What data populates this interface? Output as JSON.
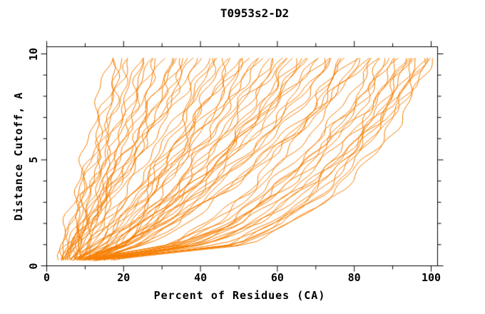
{
  "chart_data": {
    "type": "line",
    "title": "T0953s2-D2",
    "xlabel": "Percent of Residues (CA)",
    "ylabel": "Distance Cutoff, A",
    "xlim": [
      0,
      100
    ],
    "ylim": [
      0,
      10
    ],
    "grid": false,
    "legend": "none",
    "line_color": "#F67E00",
    "frame_color": "#000000",
    "x_ticks": {
      "major": [
        0,
        20,
        40,
        60,
        80,
        100
      ],
      "minor": [
        10,
        30,
        50,
        70,
        90
      ],
      "labels": [
        "0",
        "20",
        "40",
        "60",
        "80",
        "100"
      ]
    },
    "y_ticks": {
      "major": [
        0,
        5,
        10
      ],
      "minor": [
        1,
        2,
        3,
        4,
        6,
        7,
        8,
        9
      ],
      "labels": [
        "0",
        "5",
        "10"
      ]
    },
    "series_note": "Each series = one predicted model: percent of CA residues (x) under each distance cutoff in Angstroms (y). Values estimated from plot.",
    "cutoffs": [
      0.3,
      1.0,
      2.0,
      3.5,
      5.5,
      7.5,
      9.8
    ],
    "series": [
      [
        3,
        4,
        5,
        8,
        10,
        13,
        16
      ],
      [
        4,
        5,
        6,
        8,
        12,
        15,
        18
      ],
      [
        5,
        6,
        8,
        10,
        14,
        17,
        20
      ],
      [
        4,
        5,
        7,
        9,
        13,
        17,
        21
      ],
      [
        6,
        7,
        9,
        12,
        15,
        18,
        22
      ],
      [
        5,
        6,
        8,
        11,
        15,
        20,
        24
      ],
      [
        7,
        8,
        10,
        13,
        17,
        21,
        25
      ],
      [
        4,
        5,
        8,
        11,
        16,
        21,
        26
      ],
      [
        6,
        8,
        10,
        14,
        19,
        23,
        28
      ],
      [
        8,
        9,
        11,
        15,
        19,
        24,
        29
      ],
      [
        5,
        7,
        10,
        14,
        19,
        25,
        30
      ],
      [
        7,
        9,
        11,
        15,
        21,
        27,
        32
      ],
      [
        6,
        8,
        11,
        16,
        22,
        28,
        34
      ],
      [
        8,
        10,
        12,
        17,
        23,
        29,
        35
      ],
      [
        5,
        7,
        11,
        16,
        23,
        29,
        36
      ],
      [
        7,
        9,
        12,
        17,
        24,
        31,
        38
      ],
      [
        9,
        11,
        15,
        20,
        26,
        32,
        39
      ],
      [
        6,
        8,
        11,
        17,
        24,
        33,
        40
      ],
      [
        6,
        12,
        17,
        23,
        30,
        36,
        42
      ],
      [
        8,
        14,
        19,
        25,
        32,
        38,
        44
      ],
      [
        5,
        8,
        13,
        19,
        28,
        36,
        45
      ],
      [
        9,
        15,
        20,
        27,
        34,
        40,
        46
      ],
      [
        7,
        14,
        20,
        27,
        34,
        41,
        48
      ],
      [
        10,
        17,
        22,
        29,
        37,
        44,
        50
      ],
      [
        6,
        10,
        15,
        22,
        32,
        41,
        51
      ],
      [
        8,
        15,
        22,
        29,
        37,
        45,
        52
      ],
      [
        11,
        18,
        24,
        32,
        40,
        47,
        54
      ],
      [
        7,
        15,
        22,
        30,
        39,
        47,
        55
      ],
      [
        9,
        13,
        18,
        25,
        36,
        46,
        56
      ],
      [
        12,
        20,
        26,
        34,
        43,
        51,
        58
      ],
      [
        8,
        17,
        24,
        33,
        43,
        52,
        60
      ],
      [
        10,
        19,
        26,
        34,
        44,
        53,
        61
      ],
      [
        7,
        11,
        17,
        26,
        38,
        50,
        62
      ],
      [
        11,
        20,
        27,
        36,
        47,
        56,
        64
      ],
      [
        9,
        19,
        26,
        36,
        47,
        56,
        65
      ],
      [
        13,
        22,
        29,
        38,
        49,
        58,
        66
      ],
      [
        8,
        18,
        27,
        37,
        48,
        58,
        68
      ],
      [
        10,
        20,
        29,
        39,
        50,
        60,
        70
      ],
      [
        12,
        17,
        23,
        33,
        46,
        58,
        71
      ],
      [
        9,
        20,
        29,
        39,
        51,
        62,
        72
      ],
      [
        14,
        24,
        33,
        43,
        54,
        64,
        74
      ],
      [
        10,
        21,
        30,
        41,
        54,
        65,
        75
      ],
      [
        12,
        32,
        42,
        52,
        61,
        70,
        76
      ],
      [
        8,
        20,
        30,
        42,
        55,
        67,
        78
      ],
      [
        13,
        24,
        34,
        45,
        58,
        69,
        80
      ],
      [
        10,
        32,
        43,
        54,
        65,
        74,
        81
      ],
      [
        15,
        26,
        36,
        47,
        60,
        71,
        82
      ],
      [
        11,
        23,
        34,
        46,
        60,
        72,
        84
      ],
      [
        9,
        33,
        45,
        56,
        68,
        77,
        85
      ],
      [
        12,
        35,
        47,
        58,
        69,
        79,
        86
      ],
      [
        14,
        37,
        49,
        60,
        71,
        81,
        88
      ],
      [
        10,
        34,
        47,
        59,
        71,
        81,
        89
      ],
      [
        13,
        37,
        49,
        61,
        72,
        82,
        90
      ],
      [
        15,
        48,
        58,
        69,
        78,
        85,
        91
      ],
      [
        11,
        36,
        49,
        61,
        73,
        84,
        92
      ],
      [
        14,
        38,
        51,
        63,
        75,
        85,
        93
      ],
      [
        12,
        47,
        59,
        70,
        80,
        87,
        94
      ],
      [
        16,
        40,
        53,
        65,
        77,
        87,
        95
      ],
      [
        13,
        49,
        60,
        72,
        82,
        89,
        96
      ],
      [
        15,
        40,
        54,
        66,
        78,
        89,
        97
      ],
      [
        12,
        49,
        61,
        73,
        83,
        91,
        98
      ],
      [
        16,
        52,
        63,
        75,
        85,
        92,
        99
      ],
      [
        14,
        41,
        54,
        67,
        80,
        91,
        100
      ],
      [
        16,
        52,
        64,
        76,
        87,
        94,
        100
      ],
      [
        5,
        6,
        8,
        10,
        13,
        16,
        19
      ],
      [
        7,
        8,
        10,
        13,
        17,
        23,
        27
      ],
      [
        6,
        8,
        11,
        15,
        21,
        27,
        33
      ],
      [
        9,
        11,
        14,
        18,
        24,
        31,
        37
      ],
      [
        8,
        14,
        19,
        25,
        31,
        37,
        43
      ],
      [
        11,
        17,
        22,
        28,
        35,
        41,
        47
      ],
      [
        7,
        11,
        16,
        23,
        33,
        43,
        53
      ],
      [
        10,
        18,
        24,
        33,
        41,
        50,
        57
      ],
      [
        13,
        21,
        28,
        37,
        47,
        55,
        63
      ],
      [
        9,
        19,
        27,
        37,
        48,
        58,
        67
      ],
      [
        12,
        22,
        31,
        41,
        53,
        63,
        73
      ],
      [
        14,
        34,
        44,
        53,
        63,
        71,
        77
      ],
      [
        11,
        23,
        33,
        45,
        59,
        71,
        83
      ],
      [
        13,
        36,
        48,
        59,
        70,
        80,
        87
      ],
      [
        15,
        49,
        60,
        71,
        81,
        88,
        94
      ],
      [
        16,
        41,
        55,
        67,
        79,
        90,
        98
      ]
    ]
  }
}
